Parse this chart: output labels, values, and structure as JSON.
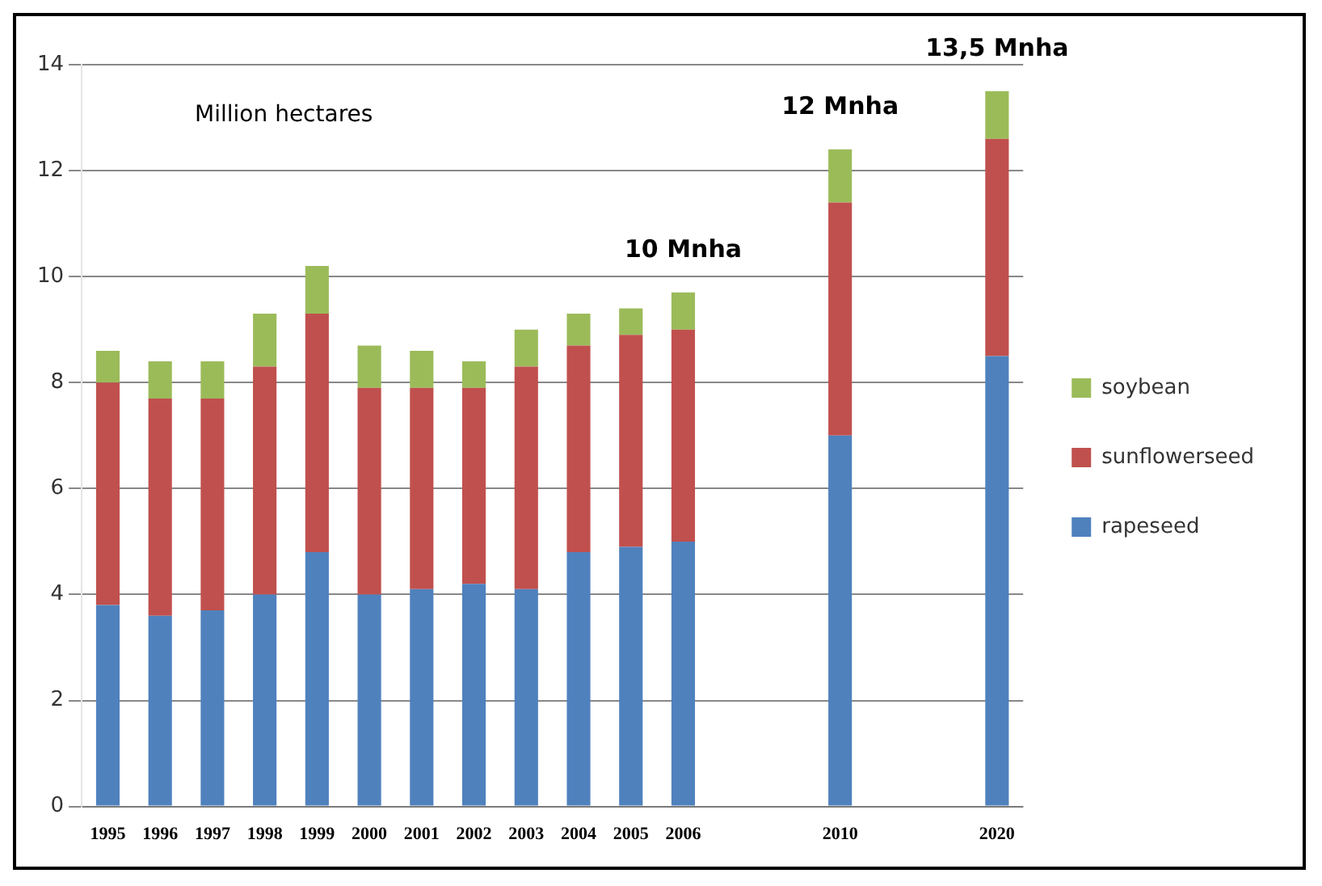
{
  "chart_data": {
    "type": "bar",
    "stacked": true,
    "categories": [
      "1995",
      "1996",
      "1997",
      "1998",
      "1999",
      "2000",
      "2001",
      "2002",
      "2003",
      "2004",
      "2005",
      "2006",
      null,
      null,
      "2010",
      null,
      null,
      "2020"
    ],
    "series": [
      {
        "name": "rapeseed",
        "color": "#4f81bd",
        "values": [
          3.8,
          3.6,
          3.7,
          4.0,
          4.8,
          4.0,
          4.1,
          4.2,
          4.1,
          4.8,
          4.9,
          5.0,
          null,
          null,
          7.0,
          null,
          null,
          8.5
        ]
      },
      {
        "name": "sunflowerseed",
        "color": "#c0504d",
        "values": [
          4.2,
          4.1,
          4.0,
          4.3,
          4.5,
          3.9,
          3.8,
          3.7,
          4.2,
          3.9,
          4.0,
          4.0,
          null,
          null,
          4.4,
          null,
          null,
          4.1
        ]
      },
      {
        "name": "soybean",
        "color": "#9bbb59",
        "values": [
          0.6,
          0.7,
          0.7,
          1.0,
          0.9,
          0.8,
          0.7,
          0.5,
          0.7,
          0.6,
          0.5,
          0.7,
          null,
          null,
          1.0,
          null,
          null,
          0.9
        ]
      }
    ],
    "ylim": [
      0,
      14
    ],
    "yticks": [
      0,
      2,
      4,
      6,
      8,
      10,
      12,
      14
    ],
    "grid": "y",
    "legend": "right",
    "annotations": [
      "Million hectares",
      {
        "text": "10 Mnha",
        "x": "2006",
        "y": 9.7
      },
      {
        "text": "12 Mnha",
        "x": "2010",
        "y": 12.4
      },
      {
        "text": "13,5 Mnha",
        "x": "2020",
        "y": 13.5
      }
    ]
  }
}
